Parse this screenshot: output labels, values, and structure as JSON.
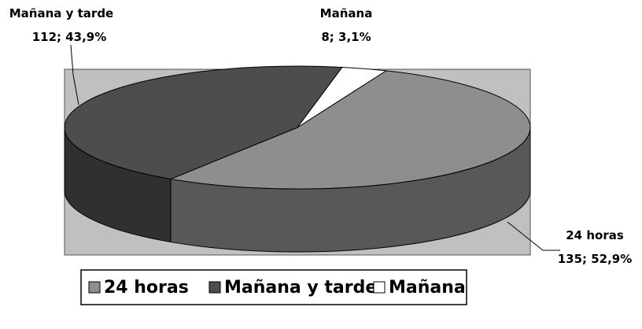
{
  "chart_data": {
    "type": "pie",
    "variant": "3d",
    "title": "",
    "slices": [
      {
        "label": "24 horas",
        "value": 135,
        "percent": "52,9%",
        "display": "135; 52,9%",
        "color": "#8e8e8e"
      },
      {
        "label": "Mañana y tarde",
        "value": 112,
        "percent": "43,9%",
        "display": "112; 43,9%",
        "color": "#4d4d4d"
      },
      {
        "label": "Mañana",
        "value": 8,
        "percent": "3,1%",
        "display": "8; 3,1%",
        "color": "#ffffff"
      }
    ],
    "plot_area_color": "#c0c0c0",
    "legend": {
      "position": "bottom",
      "items": [
        "24 horas",
        "Mañana y tarde",
        "Mañana"
      ]
    }
  }
}
